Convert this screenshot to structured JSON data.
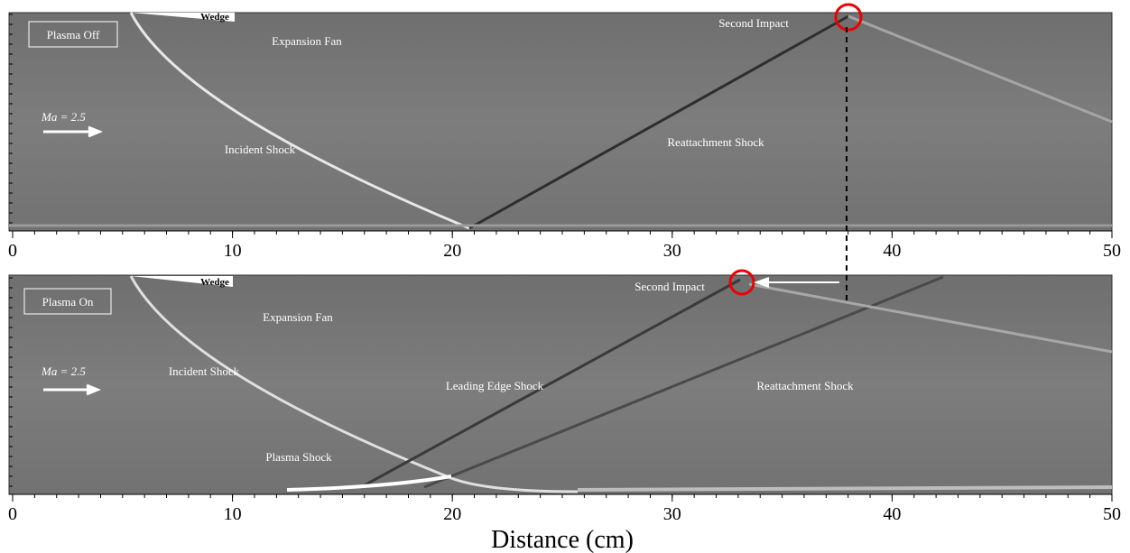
{
  "x_label": "Distance (cm)",
  "xlim": [
    0,
    50
  ],
  "xticks": [
    0,
    10,
    20,
    30,
    40,
    50
  ],
  "panels": [
    {
      "label": "Plasma Off",
      "mach": "Ma = 2.5",
      "wedge": "Wedge",
      "expansion_fan": "Expansion Fan",
      "incident_shock": "Incident Shock",
      "reattachment_shock": "Reattachment Shock",
      "second_impact": "Second Impact"
    },
    {
      "label": "Plasma On",
      "mach": "Ma = 2.5",
      "wedge": "Wedge",
      "expansion_fan": "Expansion Fan",
      "incident_shock": "Incident Shock",
      "leading_edge_shock": "Leading Edge Shock",
      "reattachment_shock": "Reattachment Shock",
      "second_impact": "Second Impact",
      "plasma_shock": "Plasma Shock"
    }
  ]
}
